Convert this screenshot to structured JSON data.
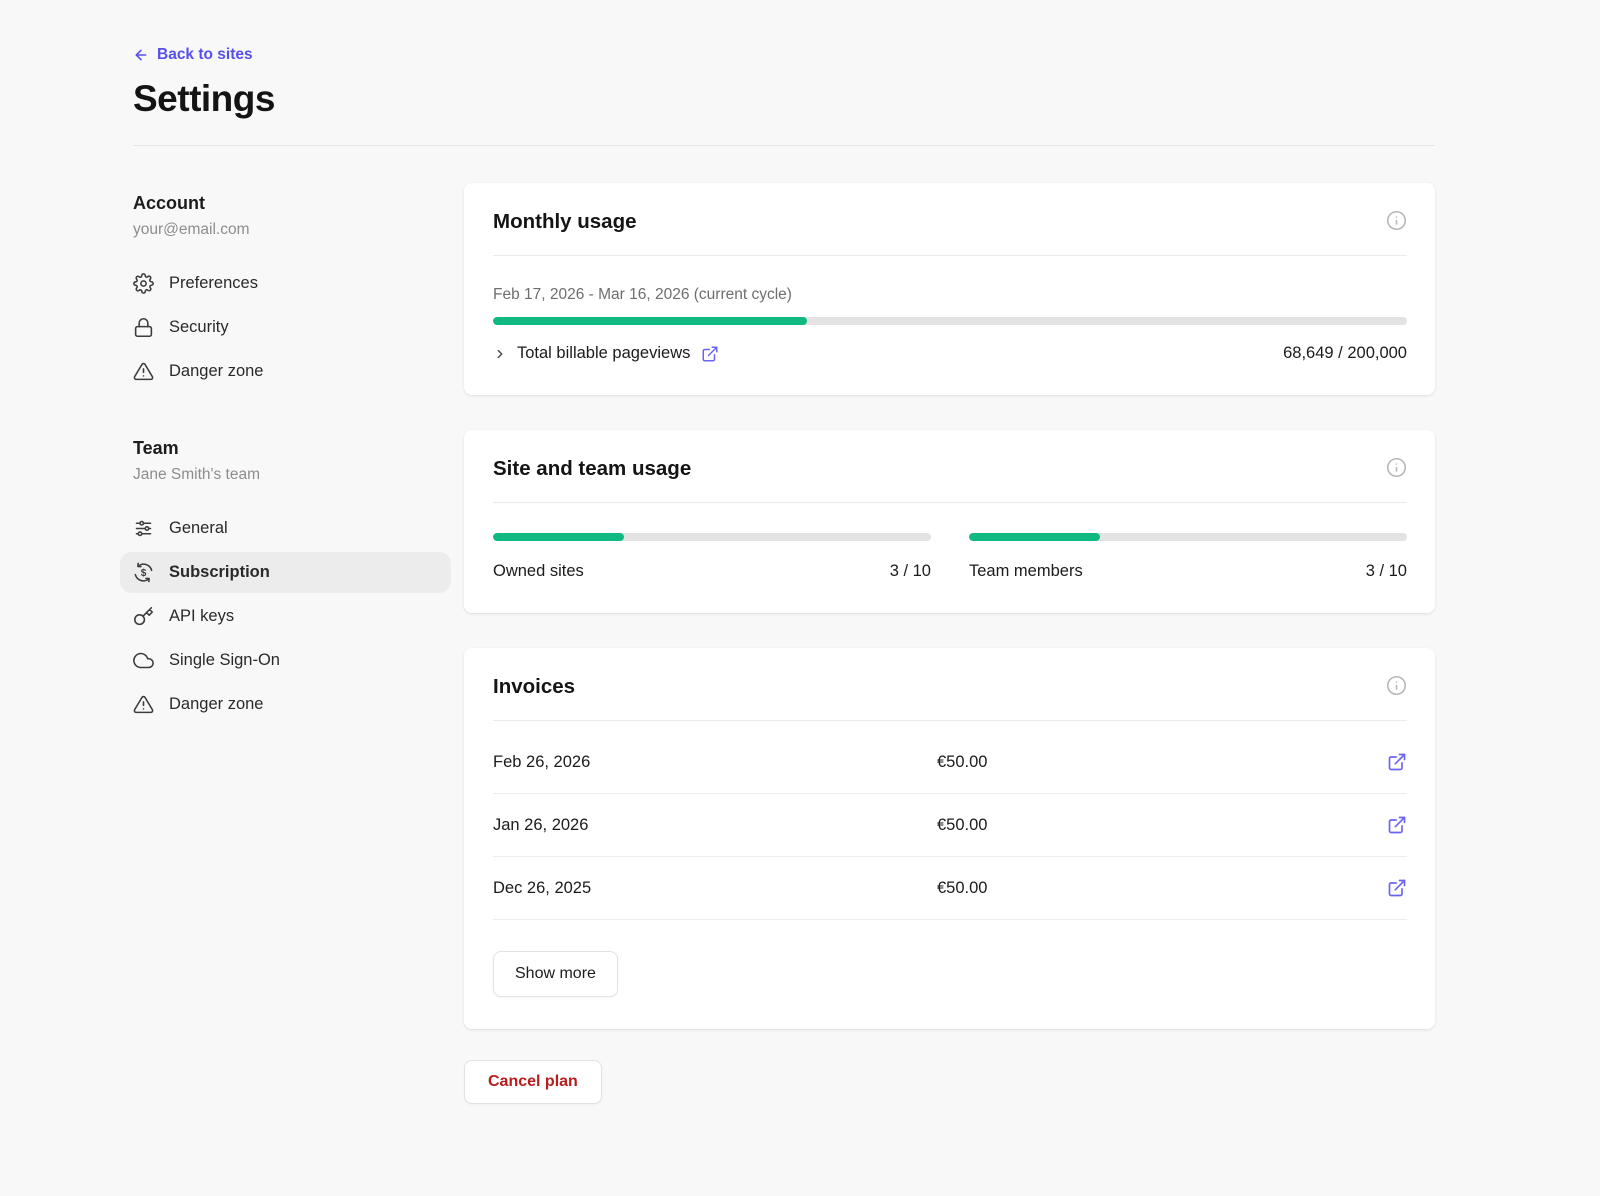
{
  "header": {
    "back_label": "Back to sites",
    "title": "Settings"
  },
  "sidebar": {
    "account": {
      "title": "Account",
      "subtitle": "your@email.com",
      "items": [
        {
          "label": "Preferences",
          "icon": "gear-icon"
        },
        {
          "label": "Security",
          "icon": "lock-icon"
        },
        {
          "label": "Danger zone",
          "icon": "warning-triangle-icon"
        }
      ]
    },
    "team": {
      "title": "Team",
      "subtitle": "Jane Smith's team",
      "items": [
        {
          "label": "General",
          "icon": "sliders-icon",
          "active": false
        },
        {
          "label": "Subscription",
          "icon": "dollar-refresh-icon",
          "active": true
        },
        {
          "label": "API keys",
          "icon": "key-icon",
          "active": false
        },
        {
          "label": "Single Sign-On",
          "icon": "cloud-icon",
          "active": false
        },
        {
          "label": "Danger zone",
          "icon": "warning-triangle-icon",
          "active": false
        }
      ]
    }
  },
  "monthly_usage": {
    "title": "Monthly usage",
    "cycle_label": "Feb 17, 2026 - Mar 16, 2026 (current cycle)",
    "progress_percent": 34.3,
    "metric_label": "Total billable pageviews",
    "metric_value": "68,649 / 200,000"
  },
  "site_team_usage": {
    "title": "Site and team usage",
    "meters": [
      {
        "label": "Owned sites",
        "value": "3 / 10",
        "percent": 30
      },
      {
        "label": "Team members",
        "value": "3 / 10",
        "percent": 30
      }
    ]
  },
  "invoices": {
    "title": "Invoices",
    "rows": [
      {
        "date": "Feb 26, 2026",
        "amount": "€50.00"
      },
      {
        "date": "Jan 26, 2026",
        "amount": "€50.00"
      },
      {
        "date": "Dec 26, 2025",
        "amount": "€50.00"
      }
    ],
    "show_more_label": "Show more"
  },
  "actions": {
    "cancel_plan_label": "Cancel plan"
  },
  "colors": {
    "accent_indigo": "#5850ec",
    "progress_green": "#10b981",
    "danger_red": "#b91c1c",
    "page_background": "#f8f8f8",
    "card_background": "#ffffff"
  }
}
